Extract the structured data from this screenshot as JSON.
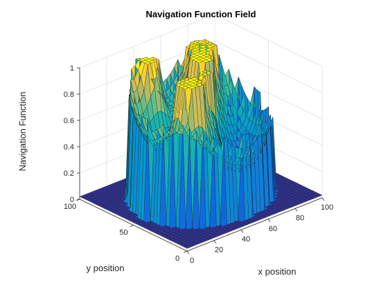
{
  "chart_data": {
    "type": "surface",
    "title": "Navigation Function Field",
    "xlabel": "x position",
    "ylabel": "y position",
    "zlabel": "Navigation Function",
    "xlim": [
      0,
      100
    ],
    "ylim": [
      0,
      100
    ],
    "zlim": [
      0,
      1
    ],
    "xticks": [
      0,
      20,
      40,
      60,
      80,
      100
    ],
    "yticks": [
      0,
      50,
      100
    ],
    "zticks": [
      0,
      0.2,
      0.4,
      0.6,
      0.8,
      1
    ],
    "grid": true,
    "colormap": "parula",
    "workspace": {
      "center": [
        50,
        50
      ],
      "radius": 42,
      "floor_value": 0.02,
      "boundary_value": 1
    },
    "obstacles": [
      {
        "center": [
          32,
          38
        ],
        "radius": 9,
        "value": 1
      },
      {
        "center": [
          47,
          42
        ],
        "radius": 5,
        "value": 1
      },
      {
        "center": [
          58,
          60
        ],
        "radius": 8,
        "value": 1
      },
      {
        "center": [
          68,
          72
        ],
        "radius": 9,
        "value": 1
      },
      {
        "center": [
          35,
          78
        ],
        "radius": 6,
        "value": 1
      }
    ],
    "goal": [
      78,
      22
    ]
  },
  "colors": {
    "low": "#352a87",
    "mid": "#20b2aa",
    "high": "#f9fb0e",
    "grid": "#e6e6e6",
    "axis": "#262626"
  }
}
